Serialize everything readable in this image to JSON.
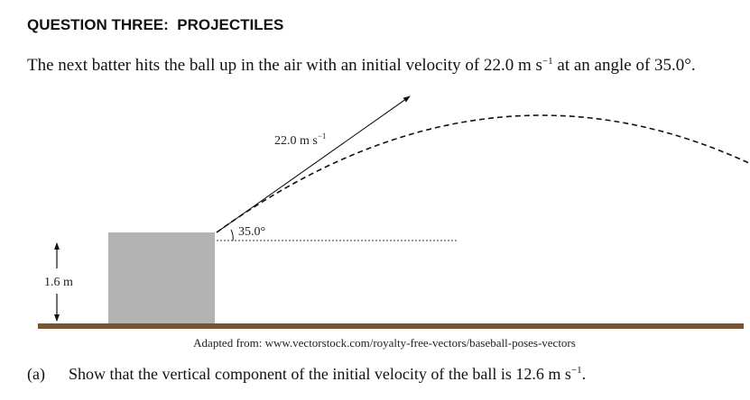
{
  "header": {
    "title": "QUESTION THREE:  PROJECTILES"
  },
  "intro": {
    "text": "The next batter hits the ball up in the air with an initial velocity of 22.0 m s",
    "exponent": "−1",
    "text_end": " at an angle of 35.0°."
  },
  "diagram": {
    "velocity_label": "22.0 m s",
    "velocity_exponent": "−1",
    "angle_label": "35.0°",
    "height_label": "1.6 m",
    "caption": "Adapted from: www.vectorstock.com/royalty-free-vectors/baseball-poses-vectors"
  },
  "question_a": {
    "label": "(a)",
    "text": "Show that the vertical component of the initial velocity of the ball is 12.6 m s",
    "exponent": "−1",
    "text_end": "."
  }
}
